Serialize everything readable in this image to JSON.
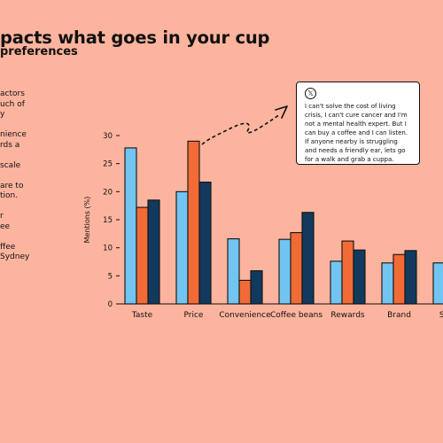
{
  "header": {
    "title": "pacts what goes in your cup",
    "subtitle": "preferences"
  },
  "side_text": [
    "actors",
    "uch of",
    "y",
    "nience",
    "rds a",
    "scale",
    "are to",
    "tion.",
    "r",
    "ee",
    "ffee",
    "Sydney"
  ],
  "quote": {
    "icon": "x-logo-icon",
    "text": "I can't solve the cost of living crisis, I can't cure cancer and I'm not a mental health expert. But I can buy a coffee and I can listen. If anyone nearby is struggling and needs a friendly ear, lets go for a walk and grab a cuppa."
  },
  "chart_data": {
    "type": "bar",
    "title": "",
    "xlabel": "",
    "ylabel": "Mentions (%)",
    "ylim": [
      0,
      30
    ],
    "yticks": [
      0,
      5,
      10,
      15,
      20,
      25,
      30
    ],
    "grid": false,
    "categories": [
      "Taste",
      "Price",
      "Convenience",
      "Coffee beans",
      "Rewards",
      "Brand",
      "Susta"
    ],
    "series": [
      {
        "color": "#72C5F0",
        "values": [
          27.8,
          20.0,
          11.6,
          11.5,
          7.6,
          7.3,
          7.3
        ]
      },
      {
        "color": "#F26B36",
        "values": [
          17.2,
          29.0,
          4.2,
          12.7,
          11.2,
          8.8,
          null
        ]
      },
      {
        "color": "#123A5E",
        "values": [
          18.5,
          21.7,
          5.9,
          16.3,
          9.6,
          9.5,
          null
        ]
      }
    ]
  }
}
